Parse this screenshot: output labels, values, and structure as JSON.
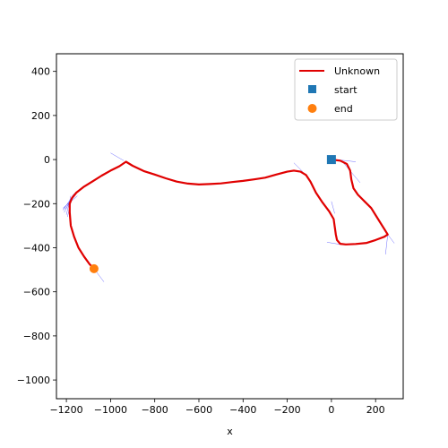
{
  "chart_data": {
    "type": "line",
    "title": "",
    "xlabel": "x",
    "ylabel": "",
    "xlim": [
      -1245,
      325
    ],
    "ylim": [
      -1085,
      480
    ],
    "x_ticks": [
      -1200,
      -1000,
      -800,
      -600,
      -400,
      -200,
      0,
      200
    ],
    "y_ticks": [
      400,
      200,
      0,
      -200,
      -400,
      -600,
      -800,
      -1000
    ],
    "grid": false,
    "legend_position": "top-right",
    "legend": [
      {
        "label": "Unknown",
        "kind": "line",
        "color": "#e00000"
      },
      {
        "label": "start",
        "kind": "square",
        "color": "#1f77b4"
      },
      {
        "label": "end",
        "kind": "circle",
        "color": "#ff7f0e"
      }
    ],
    "series": [
      {
        "name": "Unknown",
        "color": "#e00000",
        "points": [
          [
            0,
            0
          ],
          [
            40,
            -5
          ],
          [
            70,
            -20
          ],
          [
            85,
            -50
          ],
          [
            90,
            -90
          ],
          [
            100,
            -130
          ],
          [
            120,
            -160
          ],
          [
            150,
            -190
          ],
          [
            180,
            -220
          ],
          [
            205,
            -260
          ],
          [
            230,
            -300
          ],
          [
            255,
            -340
          ],
          [
            240,
            -350
          ],
          [
            200,
            -365
          ],
          [
            160,
            -378
          ],
          [
            110,
            -383
          ],
          [
            65,
            -385
          ],
          [
            40,
            -382
          ],
          [
            25,
            -365
          ],
          [
            20,
            -340
          ],
          [
            15,
            -305
          ],
          [
            10,
            -270
          ],
          [
            -10,
            -235
          ],
          [
            -40,
            -195
          ],
          [
            -70,
            -150
          ],
          [
            -95,
            -100
          ],
          [
            -115,
            -70
          ],
          [
            -140,
            -55
          ],
          [
            -170,
            -50
          ],
          [
            -200,
            -55
          ],
          [
            -250,
            -68
          ],
          [
            -300,
            -82
          ],
          [
            -350,
            -90
          ],
          [
            -400,
            -97
          ],
          [
            -450,
            -102
          ],
          [
            -500,
            -108
          ],
          [
            -550,
            -111
          ],
          [
            -600,
            -113
          ],
          [
            -650,
            -109
          ],
          [
            -700,
            -100
          ],
          [
            -750,
            -85
          ],
          [
            -800,
            -68
          ],
          [
            -850,
            -52
          ],
          [
            -900,
            -28
          ],
          [
            -930,
            -10
          ],
          [
            -960,
            -30
          ],
          [
            -1000,
            -50
          ],
          [
            -1040,
            -73
          ],
          [
            -1080,
            -98
          ],
          [
            -1120,
            -123
          ],
          [
            -1155,
            -150
          ],
          [
            -1175,
            -175
          ],
          [
            -1185,
            -200
          ],
          [
            -1185,
            -240
          ],
          [
            -1180,
            -300
          ],
          [
            -1165,
            -350
          ],
          [
            -1145,
            -400
          ],
          [
            -1120,
            -440
          ],
          [
            -1095,
            -475
          ],
          [
            -1075,
            -495
          ]
        ]
      }
    ],
    "markers": [
      {
        "name": "start",
        "shape": "square",
        "x": 0,
        "y": 0,
        "color": "#1f77b4"
      },
      {
        "name": "end",
        "shape": "circle",
        "x": -1075,
        "y": -495,
        "color": "#ff7f0e"
      }
    ],
    "direction_segments": [
      {
        "x1": -1000,
        "y1": 30,
        "x2": -940,
        "y2": -5
      },
      {
        "x1": -1215,
        "y1": -220,
        "x2": -1150,
        "y2": -165
      },
      {
        "x1": -1215,
        "y1": -225,
        "x2": -1160,
        "y2": -160
      },
      {
        "x1": -1215,
        "y1": -230,
        "x2": -1165,
        "y2": -155
      },
      {
        "x1": -1210,
        "y1": -240,
        "x2": -1170,
        "y2": -160
      },
      {
        "x1": -1200,
        "y1": -250,
        "x2": -1180,
        "y2": -165
      },
      {
        "x1": -1195,
        "y1": -260,
        "x2": -1175,
        "y2": -170
      },
      {
        "x1": -1205,
        "y1": -225,
        "x2": -1155,
        "y2": -155
      },
      {
        "x1": -1075,
        "y1": -495,
        "x2": -1030,
        "y2": -555
      },
      {
        "x1": -170,
        "y1": -15,
        "x2": -130,
        "y2": -55
      },
      {
        "x1": 0,
        "y1": -190,
        "x2": 15,
        "y2": -245
      },
      {
        "x1": -20,
        "y1": -375,
        "x2": 40,
        "y2": -385
      },
      {
        "x1": 20,
        "y1": 0,
        "x2": 110,
        "y2": -10
      },
      {
        "x1": 50,
        "y1": -10,
        "x2": 130,
        "y2": -105
      },
      {
        "x1": 245,
        "y1": -430,
        "x2": 255,
        "y2": -340
      },
      {
        "x1": 255,
        "y1": -340,
        "x2": 285,
        "y2": -380
      }
    ]
  }
}
